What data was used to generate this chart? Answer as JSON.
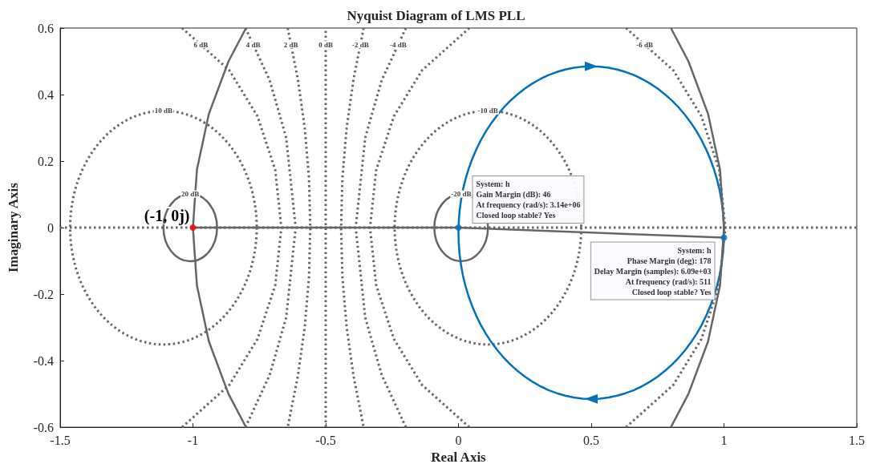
{
  "chart_data": {
    "type": "line",
    "title": "Nyquist Diagram of LMS PLL",
    "xlabel": "Real Axis",
    "ylabel": "Imaginary Axis",
    "xlim": [
      -1.5,
      1.5
    ],
    "xticks": [
      -1.5,
      -1,
      -0.5,
      0,
      0.5,
      1,
      1.5
    ],
    "ylim": [
      -0.6,
      0.6
    ],
    "yticks": [
      -0.6,
      -0.4,
      -0.2,
      0,
      0.2,
      0.4,
      0.6
    ],
    "series": [
      {
        "color": "#666666",
        "line_style": "dotted",
        "marker": "none",
        "x": [
          -1.5,
          1.5
        ],
        "values": [
          0,
          0
        ]
      },
      {
        "color": "#666666",
        "line_style": "dotted",
        "marker": "none",
        "x": [
          -0.5,
          -0.5
        ],
        "values": [
          -0.6,
          0.6
        ]
      },
      {
        "color": "#666666",
        "line_style": "dotted",
        "marker": "none",
        "x": [
          -0.643,
          -0.605,
          -0.579,
          -0.563,
          -0.558,
          -0.563,
          -0.579,
          -0.605,
          -0.643
        ],
        "values": [
          0.6,
          0.447,
          0.3,
          0.15,
          0,
          -0.15,
          -0.3,
          -0.447,
          -0.6
        ]
      },
      {
        "color": "#666666",
        "line_style": "dotted",
        "marker": "none",
        "x": [
          -0.357,
          -0.395,
          -0.421,
          -0.437,
          -0.442,
          -0.437,
          -0.421,
          -0.395,
          -0.357
        ],
        "values": [
          0.6,
          0.447,
          0.3,
          0.15,
          0,
          -0.15,
          -0.3,
          -0.447,
          -0.6
        ]
      },
      {
        "color": "#666666",
        "line_style": "dotted",
        "marker": "none",
        "x": [
          -0.802,
          -0.711,
          -0.649,
          -0.613,
          -0.649,
          -0.711,
          -0.802
        ],
        "values": [
          0.6,
          0.443,
          0.271,
          0,
          -0.271,
          -0.443,
          -0.6
        ]
      },
      {
        "color": "#666666",
        "line_style": "dotted",
        "marker": "none",
        "x": [
          -0.198,
          -0.289,
          -0.351,
          -0.387,
          -0.351,
          -0.289,
          -0.198
        ],
        "values": [
          0.6,
          0.443,
          0.271,
          0,
          -0.271,
          -0.443,
          -0.6
        ]
      },
      {
        "color": "#666666",
        "line_style": "dotted",
        "marker": "none",
        "x": [
          -1.041,
          -0.863,
          -0.757,
          -0.69,
          -0.667,
          -0.69,
          -0.757,
          -0.863,
          -1.041
        ],
        "values": [
          0.6,
          0.473,
          0.335,
          0.173,
          0,
          -0.173,
          -0.335,
          -0.473,
          -0.6
        ]
      },
      {
        "color": "#666666",
        "line_style": "dotted",
        "marker": "none",
        "x": [
          0.041,
          -0.137,
          -0.243,
          -0.31,
          -0.333,
          -0.31,
          -0.243,
          -0.137,
          0.041
        ],
        "values": [
          0.6,
          0.473,
          0.335,
          0.173,
          0,
          -0.173,
          -0.335,
          -0.473,
          -0.6
        ]
      },
      {
        "color": "#666666",
        "line_style": "dotted",
        "marker": "none",
        "x": [
          0.631,
          0.809,
          0.915,
          0.982,
          1.005,
          0.982,
          0.915,
          0.809,
          0.631
        ],
        "values": [
          0.6,
          0.473,
          0.335,
          0.173,
          0,
          -0.173,
          -0.335,
          -0.473,
          -0.6
        ]
      },
      {
        "color": "#666666",
        "line_style": "solid",
        "marker": "none",
        "x": [
          0.8,
          0.866,
          0.94,
          0.985,
          1,
          0.985,
          0.94,
          0.866,
          0.8
        ],
        "values": [
          -0.6,
          -0.5,
          -0.342,
          -0.174,
          0,
          0.174,
          0.342,
          0.5,
          0.6
        ]
      },
      {
        "color": "#666666",
        "line_style": "solid",
        "marker": "none",
        "x": [
          -0.8,
          -0.866,
          -0.94,
          -0.985,
          -1,
          -0.985,
          -0.94,
          -0.866,
          -0.8
        ],
        "values": [
          -0.6,
          -0.5,
          -0.342,
          -0.174,
          0,
          0.174,
          0.342,
          0.5,
          0.6
        ]
      },
      {
        "color": "#666666",
        "line_style": "solid",
        "marker": "none",
        "x": [
          -1,
          0,
          1
        ],
        "values": [
          0,
          0,
          -0.03
        ]
      },
      {
        "type": "scatter",
        "color": "#0072bd",
        "marker": "circle",
        "x": [
          0,
          1
        ],
        "values": [
          0,
          -0.03
        ]
      },
      {
        "type": "scatter",
        "color": "#ff0000",
        "marker": "circle",
        "x": [
          -1
        ],
        "values": [
          0
        ]
      }
    ],
    "annotations": [
      {
        "text": "6 dB",
        "x": -0.97,
        "y": 0.55
      },
      {
        "text": "4 dB",
        "x": -0.773,
        "y": 0.55
      },
      {
        "text": "2 dB",
        "x": -0.631,
        "y": 0.55
      },
      {
        "text": "0 dB",
        "x": -0.5,
        "y": 0.55
      },
      {
        "text": "-2 dB",
        "x": -0.369,
        "y": 0.55
      },
      {
        "text": "-4 dB",
        "x": -0.227,
        "y": 0.55
      },
      {
        "text": "-6 dB",
        "x": 0.701,
        "y": 0.55
      },
      {
        "text": "10 dB",
        "x": -1.111,
        "y": 0.351
      },
      {
        "text": "-10 dB",
        "x": 0.111,
        "y": 0.351
      },
      {
        "text": "20 dB",
        "x": -1.01,
        "y": 0.101
      },
      {
        "text": "-20 dB",
        "x": 0.01,
        "y": 0.101
      },
      {
        "text": "(-1, 0j)",
        "x": -1,
        "y": 0
      },
      {
        "text": "System: h\nGain Margin (dB): 46\nAt frequency (rad/s): 3.14e+06\nClosed loop stable? Yes",
        "x": 0,
        "y": 0
      },
      {
        "text": "System: h\nPhase Margin (deg): 178\nDelay Margin (samples): 6.09e+03\nAt frequency (rad/s): 511\nClosed loop stable? Yes",
        "x": 1,
        "y": -0.03
      }
    ]
  }
}
